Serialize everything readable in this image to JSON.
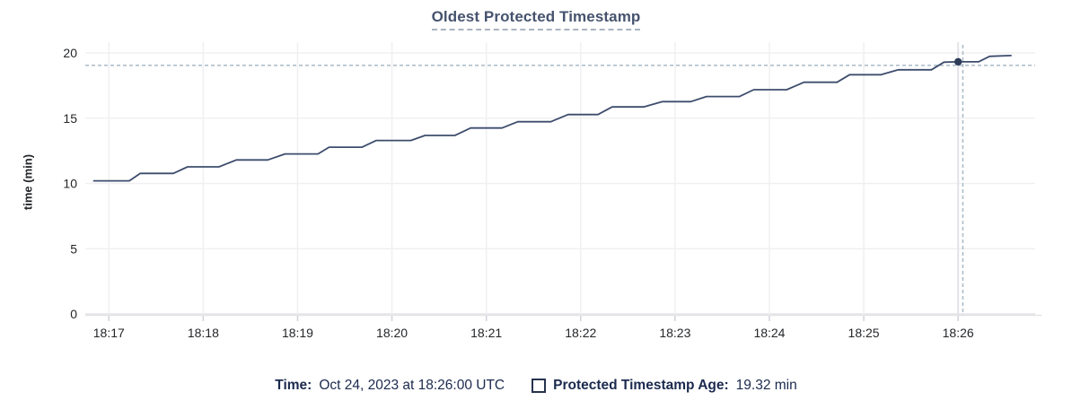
{
  "header": {
    "title": "Oldest Protected Timestamp"
  },
  "chart_data": {
    "type": "line",
    "title": "Oldest Protected Timestamp",
    "xlabel": "",
    "ylabel": "time (min)",
    "ylim": [
      0,
      20
    ],
    "y_ticks": [
      0,
      5,
      10,
      15,
      20
    ],
    "x_ticks": [
      "18:17",
      "18:18",
      "18:19",
      "18:20",
      "18:21",
      "18:22",
      "18:23",
      "18:24",
      "18:25",
      "18:26"
    ],
    "x_domain": [
      "18:16:45",
      "18:26:49"
    ],
    "grid": true,
    "legend_position": "bottom",
    "series": [
      {
        "name": "Protected Timestamp Age",
        "color": "#3e4d6d",
        "points": [
          [
            "18:16:50",
            10.2
          ],
          [
            "18:17:13",
            10.2
          ],
          [
            "18:17:20",
            10.77
          ],
          [
            "18:17:41",
            10.77
          ],
          [
            "18:17:50",
            11.27
          ],
          [
            "18:18:10",
            11.27
          ],
          [
            "18:18:21",
            11.8
          ],
          [
            "18:18:41",
            11.8
          ],
          [
            "18:18:52",
            12.26
          ],
          [
            "18:19:13",
            12.26
          ],
          [
            "18:19:20",
            12.78
          ],
          [
            "18:19:41",
            12.78
          ],
          [
            "18:19:50",
            13.29
          ],
          [
            "18:20:12",
            13.29
          ],
          [
            "18:20:21",
            13.68
          ],
          [
            "18:20:40",
            13.68
          ],
          [
            "18:20:50",
            14.25
          ],
          [
            "18:21:10",
            14.25
          ],
          [
            "18:21:20",
            14.73
          ],
          [
            "18:21:41",
            14.73
          ],
          [
            "18:21:52",
            15.28
          ],
          [
            "18:22:11",
            15.28
          ],
          [
            "18:22:20",
            15.86
          ],
          [
            "18:22:40",
            15.86
          ],
          [
            "18:22:52",
            16.27
          ],
          [
            "18:23:10",
            16.27
          ],
          [
            "18:23:20",
            16.66
          ],
          [
            "18:23:41",
            16.66
          ],
          [
            "18:23:50",
            17.18
          ],
          [
            "18:24:11",
            17.18
          ],
          [
            "18:24:22",
            17.75
          ],
          [
            "18:24:43",
            17.75
          ],
          [
            "18:24:51",
            18.33
          ],
          [
            "18:25:11",
            18.33
          ],
          [
            "18:25:22",
            18.71
          ],
          [
            "18:25:43",
            18.71
          ],
          [
            "18:25:51",
            19.29
          ],
          [
            "18:26:00",
            19.32
          ],
          [
            "18:26:13",
            19.32
          ],
          [
            "18:26:20",
            19.74
          ],
          [
            "18:26:34",
            19.8
          ]
        ]
      }
    ],
    "hover": {
      "time": "18:26:00",
      "value": 19.32,
      "cursor_time": "18:26:03",
      "cursor_level": 19.05,
      "highlight_tick": "18:26"
    }
  },
  "legend": {
    "time_label": "Time:",
    "time_value": "Oct 24, 2023 at 18:26:00 UTC",
    "age_label": "Protected Timestamp Age:",
    "age_value": "19.32 min"
  },
  "colors": {
    "line": "#3e4d6d",
    "dot": "#2e3c59",
    "grid": "#f0f0f2",
    "highlight_grid": "#e4e4e8",
    "axis_line": "#e3e3e7",
    "tick": "#cfd3d9",
    "crosshair": "#a9bac6",
    "axis_label": "#242629",
    "title": "#46536e",
    "legend_text": "#1b2a4e",
    "swatch_border": "#26334f"
  }
}
